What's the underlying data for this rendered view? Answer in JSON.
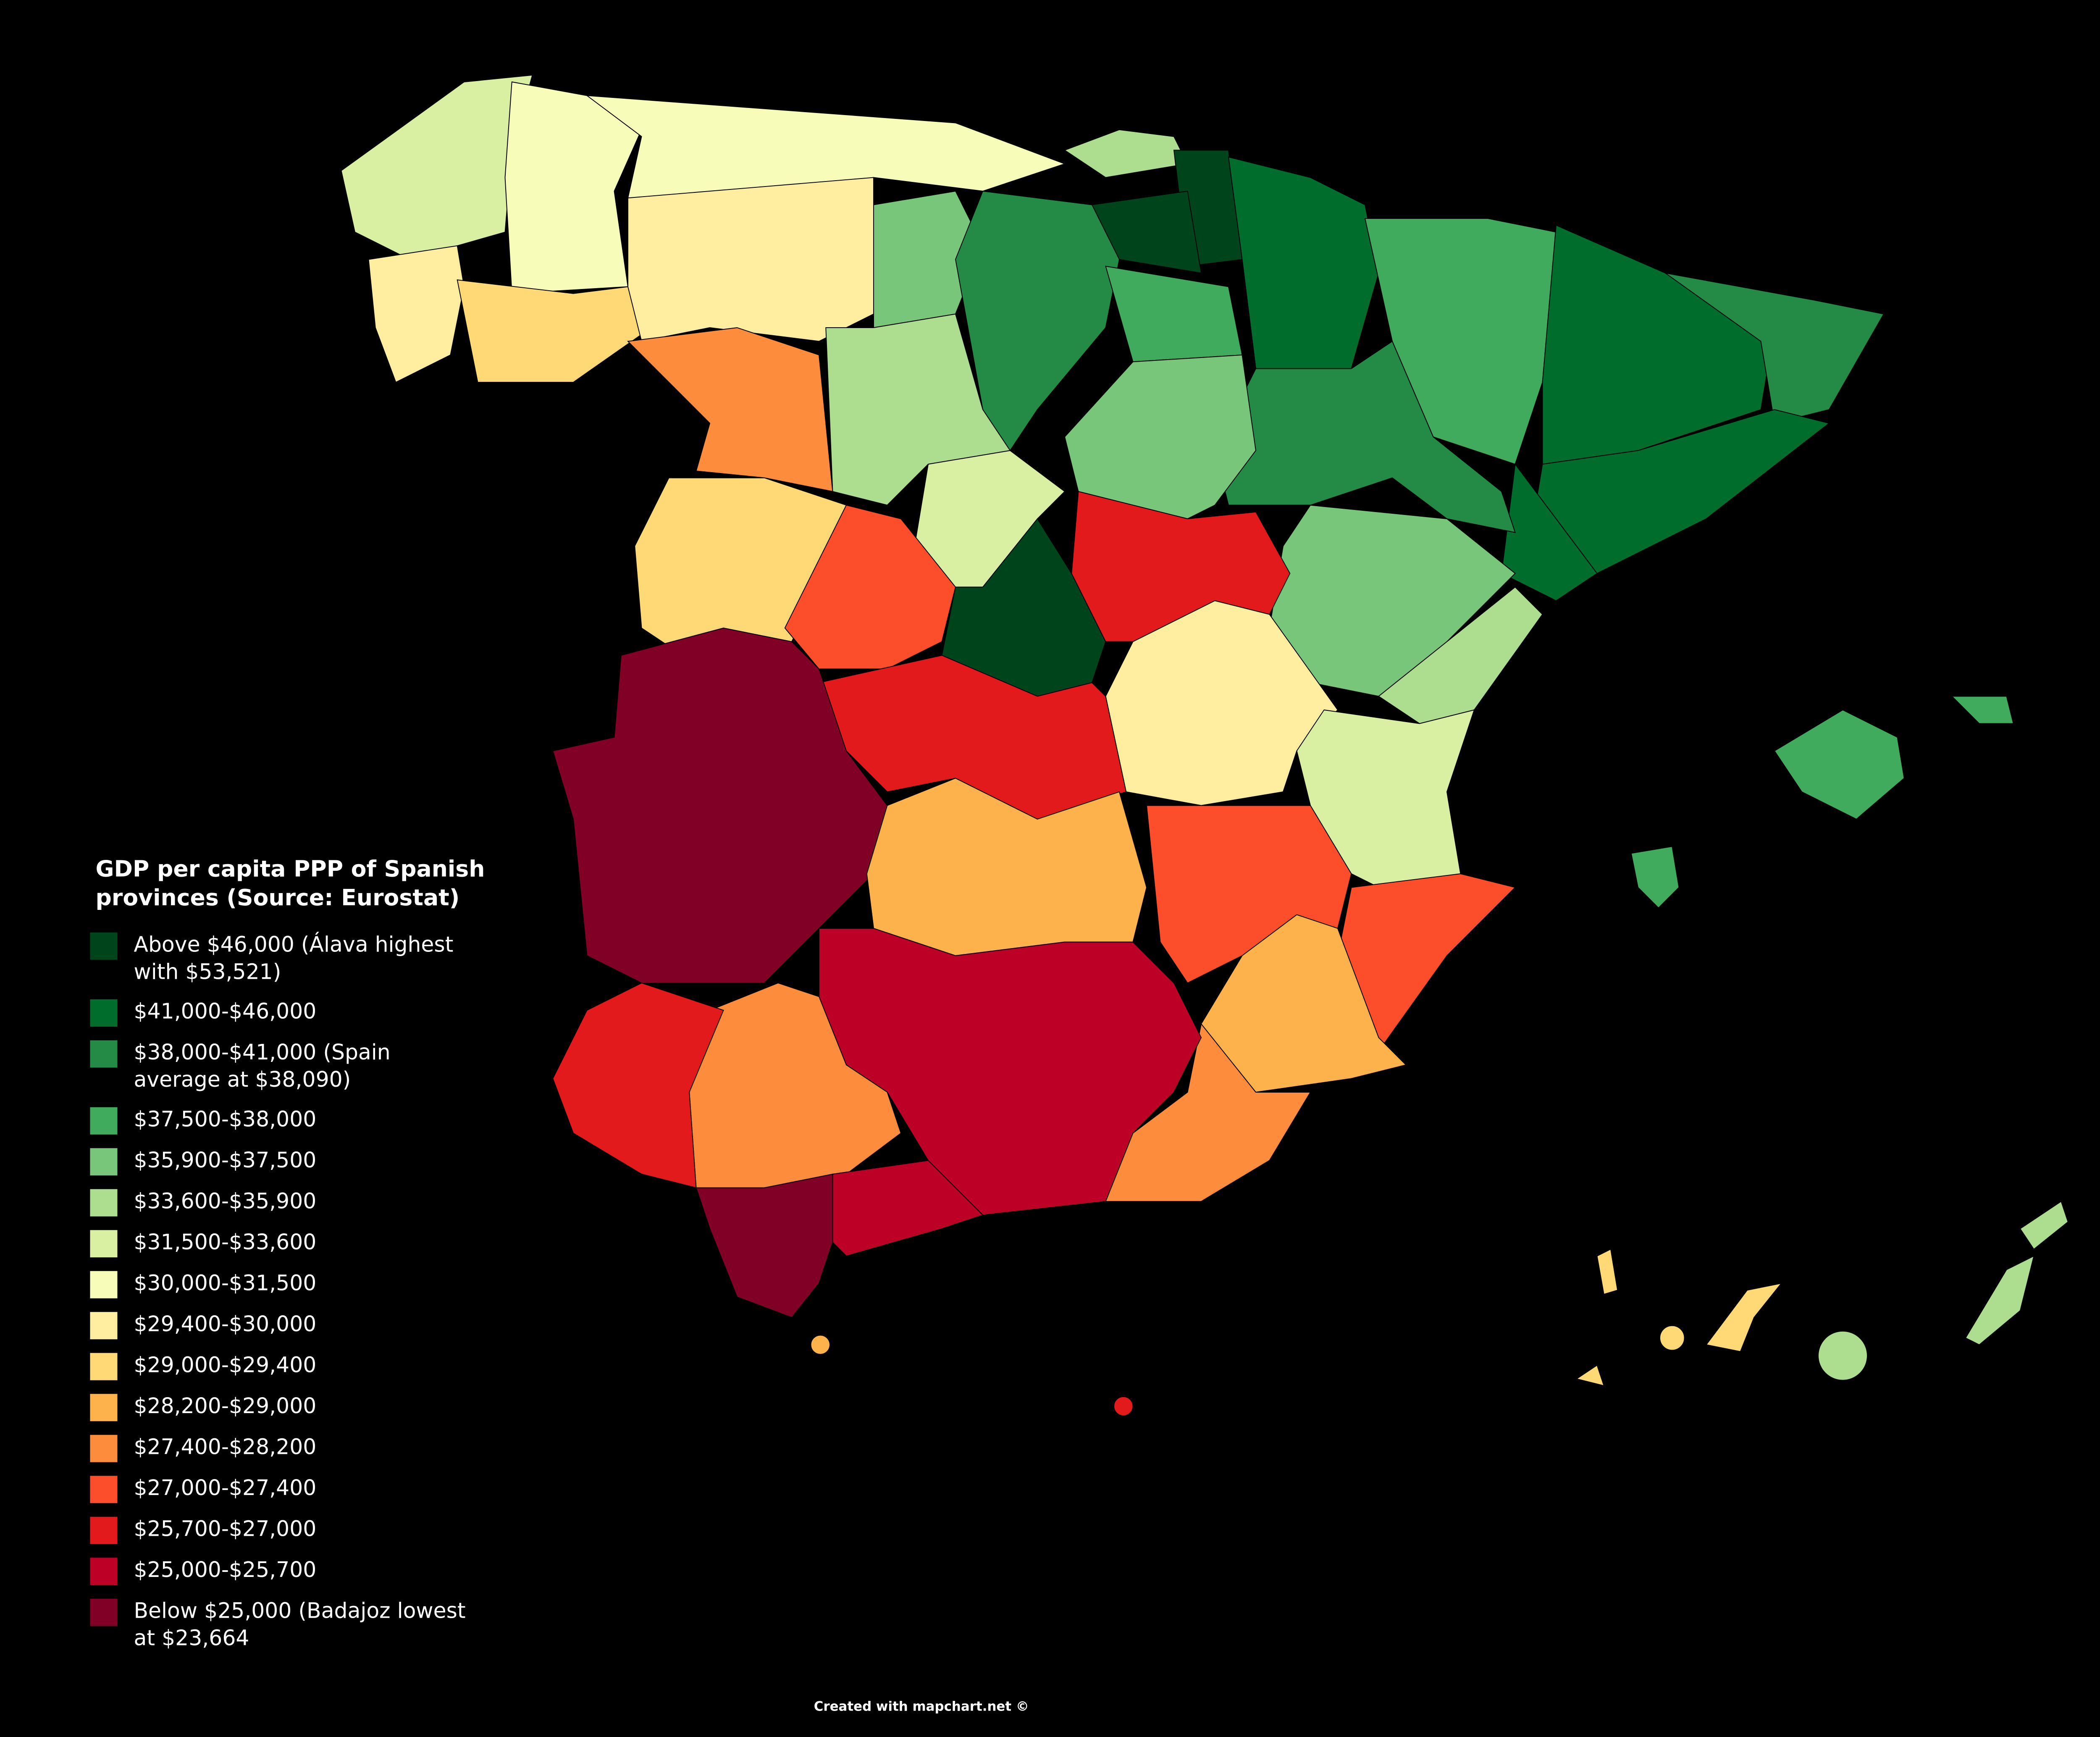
{
  "title": "GDP per capita PPP of Spanish provinces (Source: Eurostat)",
  "legend": [
    {
      "label": "Above $46,000 (Álava highest with $53,521)",
      "color": "#00441b"
    },
    {
      "label": "$41,000-$46,000",
      "color": "#006d2c"
    },
    {
      "label": "$38,000-$41,000 (Spain average at $38,090)",
      "color": "#238b45"
    },
    {
      "label": "$37,500-$38,000",
      "color": "#41ab5d"
    },
    {
      "label": "$35,900-$37,500",
      "color": "#78c679"
    },
    {
      "label": "$33,600-$35,900",
      "color": "#addd8e"
    },
    {
      "label": "$31,500-$33,600",
      "color": "#d9f0a3"
    },
    {
      "label": "$30,000-$31,500",
      "color": "#f7fcb9"
    },
    {
      "label": "$29,400-$30,000",
      "color": "#ffeda0"
    },
    {
      "label": "$29,000-$29,400",
      "color": "#fed976"
    },
    {
      "label": "$28,200-$29,000",
      "color": "#feb24c"
    },
    {
      "label": "$27,400-$28,200",
      "color": "#fd8d3c"
    },
    {
      "label": "$27,000-$27,400",
      "color": "#fc4e2a"
    },
    {
      "label": "$25,700-$27,000",
      "color": "#e31a1c"
    },
    {
      "label": "$25,000-$25,700",
      "color": "#bd0026"
    },
    {
      "label": "Below $25,000 (Badajoz lowest at $23,664",
      "color": "#800026"
    }
  ],
  "credit": "Created with mapchart.net ©"
}
